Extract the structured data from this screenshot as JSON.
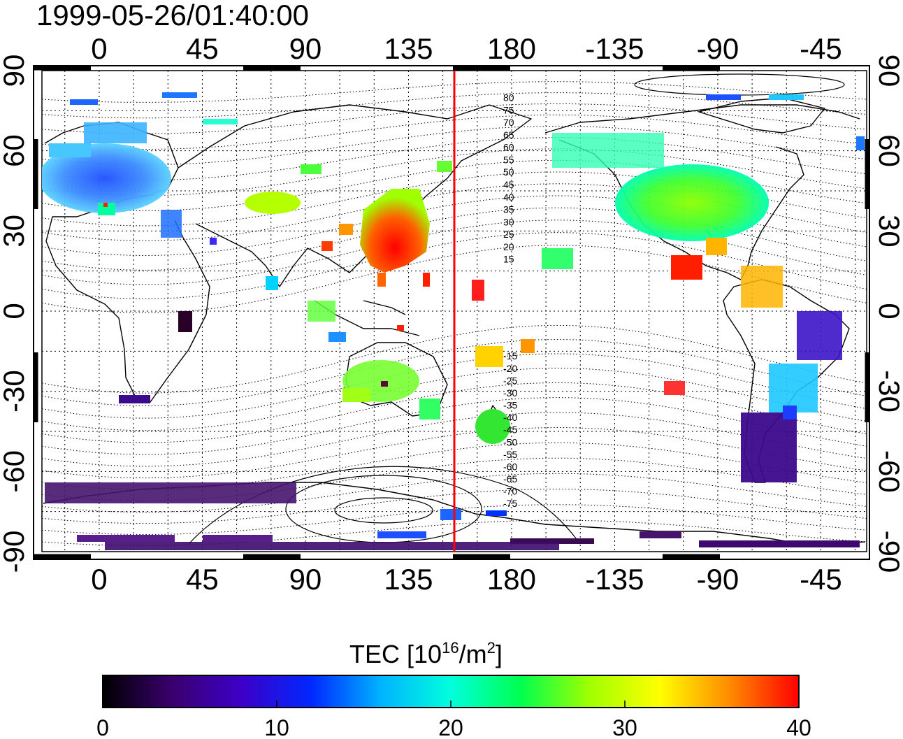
{
  "title": "1999-05-26/01:40:00",
  "map": {
    "lon_ticks": [
      "0",
      "45",
      "90",
      "135",
      "180",
      "-135",
      "-90",
      "-45"
    ],
    "lat_ticks": [
      "90",
      "60",
      "30",
      "0",
      "-30",
      "-60",
      "-90"
    ],
    "contour_labels_north": [
      "80",
      "75",
      "70",
      "65",
      "60",
      "55",
      "50",
      "45",
      "40",
      "35",
      "30",
      "25",
      "20",
      "15"
    ],
    "contour_labels_south": [
      "-15",
      "-20",
      "-25",
      "-30",
      "-35",
      "-40",
      "-45",
      "-50",
      "-55",
      "-60",
      "-65",
      "-70",
      "-75"
    ],
    "terminator_color": "#ff0000"
  },
  "colorbar": {
    "title": "TEC",
    "unit_base": "10",
    "unit_exp": "16",
    "unit_mid": "/m",
    "unit_exp2": "2",
    "ticks": [
      "0",
      "10",
      "20",
      "30",
      "40"
    ]
  },
  "chart_data": {
    "type": "heatmap",
    "title": "1999-05-26/01:40:00",
    "colorbar_range": [
      0,
      40
    ],
    "xlim": [
      -25,
      335
    ],
    "ylim": [
      -90,
      90
    ],
    "terminator_lon": 155,
    "regions": [
      {
        "lon": 0,
        "lat": 50,
        "value": 12
      },
      {
        "lon": 20,
        "lat": 55,
        "value": 13
      },
      {
        "lon": 10,
        "lat": 65,
        "value": 15
      },
      {
        "lon": 75,
        "lat": 45,
        "value": 26
      },
      {
        "lon": 130,
        "lat": 35,
        "value": 28
      },
      {
        "lon": 125,
        "lat": 22,
        "value": 38
      },
      {
        "lon": 100,
        "lat": 20,
        "value": 34
      },
      {
        "lon": 135,
        "lat": -25,
        "value": 23
      },
      {
        "lon": 172,
        "lat": -42,
        "value": 22
      },
      {
        "lon": 255,
        "lat": 40,
        "value": 25
      },
      {
        "lon": 260,
        "lat": 20,
        "value": 37
      },
      {
        "lon": 305,
        "lat": -10,
        "value": 10
      },
      {
        "lon": 300,
        "lat": -45,
        "value": 6
      },
      {
        "lon": 60,
        "lat": -75,
        "value": 4
      },
      {
        "lon": 150,
        "lat": -85,
        "value": 9
      }
    ]
  }
}
